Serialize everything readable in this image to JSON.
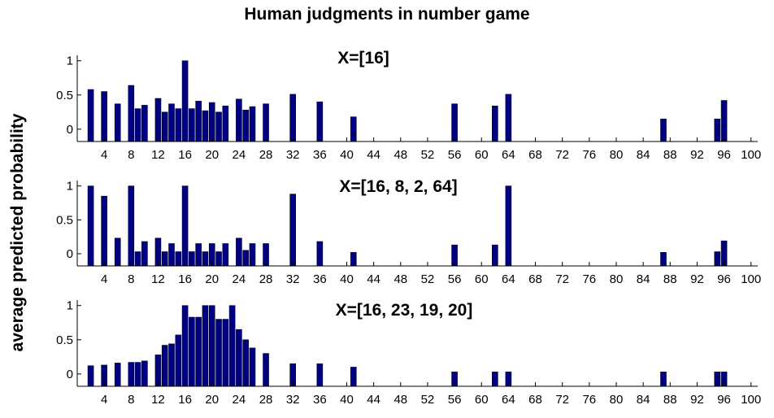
{
  "figure": {
    "title": "Human judgments in number game",
    "ylabel": "average predicted probability"
  },
  "colors": {
    "bar": "#000080",
    "axis": "#000000"
  },
  "chart_data": [
    {
      "type": "bar",
      "title": "X=[16]",
      "xlim": [
        0,
        101
      ],
      "ylim": [
        -0.18,
        1.08
      ],
      "xticks": [
        4,
        8,
        12,
        16,
        20,
        24,
        28,
        32,
        36,
        40,
        44,
        48,
        52,
        56,
        60,
        64,
        68,
        72,
        76,
        80,
        84,
        88,
        92,
        96,
        100
      ],
      "yticks": [
        0,
        0.5,
        1
      ],
      "ytick_labels": [
        "0",
        "0.5",
        "1"
      ],
      "grid": false,
      "x": [
        2,
        4,
        6,
        8,
        9,
        10,
        12,
        13,
        14,
        15,
        16,
        17,
        18,
        19,
        20,
        21,
        22,
        24,
        25,
        26,
        28,
        32,
        36,
        41,
        56,
        62,
        64,
        87,
        95,
        96
      ],
      "values": [
        0.58,
        0.55,
        0.37,
        0.64,
        0.3,
        0.35,
        0.45,
        0.25,
        0.37,
        0.3,
        1.0,
        0.3,
        0.41,
        0.27,
        0.39,
        0.25,
        0.34,
        0.44,
        0.28,
        0.33,
        0.37,
        0.51,
        0.4,
        0.18,
        0.37,
        0.34,
        0.51,
        0.15,
        0.15,
        0.42
      ]
    },
    {
      "type": "bar",
      "title": "X=[16, 8, 2, 64]",
      "xlim": [
        0,
        101
      ],
      "ylim": [
        -0.18,
        1.08
      ],
      "xticks": [
        4,
        8,
        12,
        16,
        20,
        24,
        28,
        32,
        36,
        40,
        44,
        48,
        52,
        56,
        60,
        64,
        68,
        72,
        76,
        80,
        84,
        88,
        92,
        96,
        100
      ],
      "yticks": [
        0,
        0.5,
        1
      ],
      "ytick_labels": [
        "0",
        "0.5",
        "1"
      ],
      "grid": false,
      "x": [
        2,
        4,
        6,
        8,
        9,
        10,
        12,
        13,
        14,
        15,
        16,
        17,
        18,
        19,
        20,
        21,
        22,
        24,
        25,
        26,
        28,
        32,
        36,
        41,
        56,
        62,
        64,
        87,
        95,
        96
      ],
      "values": [
        1.0,
        0.85,
        0.23,
        1.0,
        0.03,
        0.18,
        0.23,
        0.03,
        0.15,
        0.03,
        1.0,
        0.03,
        0.15,
        0.03,
        0.15,
        0.03,
        0.15,
        0.23,
        0.05,
        0.15,
        0.15,
        0.88,
        0.18,
        0.02,
        0.13,
        0.13,
        1.0,
        0.02,
        0.03,
        0.19
      ]
    },
    {
      "type": "bar",
      "title": "X=[16, 23, 19, 20]",
      "xlim": [
        0,
        101
      ],
      "ylim": [
        -0.18,
        1.08
      ],
      "xticks": [
        4,
        8,
        12,
        16,
        20,
        24,
        28,
        32,
        36,
        40,
        44,
        48,
        52,
        56,
        60,
        64,
        68,
        72,
        76,
        80,
        84,
        88,
        92,
        96,
        100
      ],
      "yticks": [
        0,
        0.5,
        1
      ],
      "ytick_labels": [
        "0",
        "0.5",
        "1"
      ],
      "grid": false,
      "x": [
        2,
        4,
        6,
        8,
        9,
        10,
        12,
        13,
        14,
        15,
        16,
        17,
        18,
        19,
        20,
        21,
        22,
        23,
        24,
        25,
        26,
        28,
        32,
        36,
        41,
        56,
        62,
        64,
        87,
        95,
        96
      ],
      "values": [
        0.12,
        0.13,
        0.16,
        0.17,
        0.17,
        0.19,
        0.28,
        0.42,
        0.44,
        0.57,
        1.0,
        0.83,
        0.83,
        1.0,
        1.0,
        0.8,
        0.8,
        1.0,
        0.65,
        0.5,
        0.38,
        0.3,
        0.15,
        0.15,
        0.1,
        0.03,
        0.03,
        0.03,
        0.03,
        0.03,
        0.03
      ]
    }
  ]
}
